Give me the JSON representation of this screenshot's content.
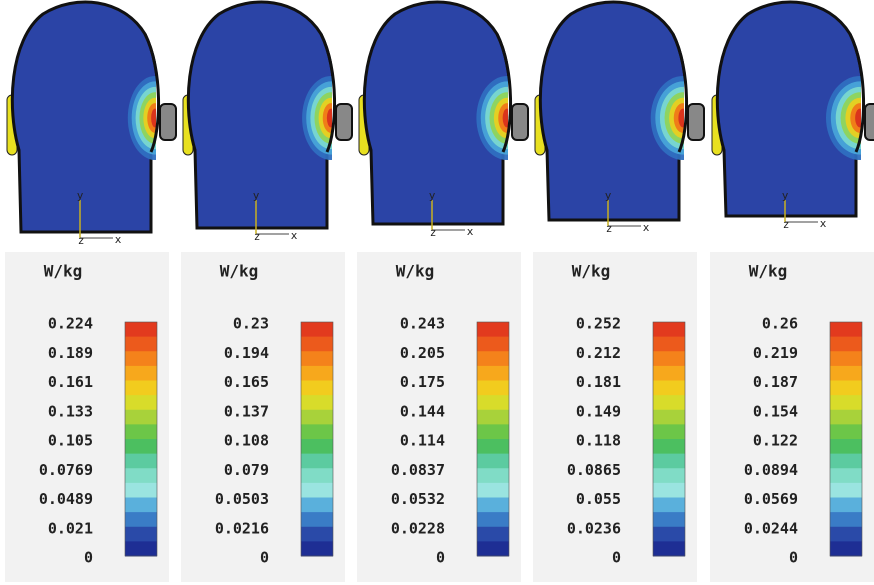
{
  "axis_labels": [
    "y",
    "z",
    "x"
  ],
  "panels": [
    {
      "unit": "W/kg",
      "ticks": [
        0.224,
        0.189,
        0.161,
        0.133,
        0.105,
        0.0769,
        0.0489,
        0.021,
        0
      ]
    },
    {
      "unit": "W/kg",
      "ticks": [
        0.23,
        0.194,
        0.165,
        0.137,
        0.108,
        0.079,
        0.0503,
        0.0216,
        0
      ]
    },
    {
      "unit": "W/kg",
      "ticks": [
        0.243,
        0.205,
        0.175,
        0.144,
        0.114,
        0.0837,
        0.0532,
        0.0228,
        0
      ]
    },
    {
      "unit": "W/kg",
      "ticks": [
        0.252,
        0.212,
        0.181,
        0.149,
        0.118,
        0.0865,
        0.055,
        0.0236,
        0
      ]
    },
    {
      "unit": "W/kg",
      "ticks": [
        0.26,
        0.219,
        0.187,
        0.154,
        0.122,
        0.0894,
        0.0569,
        0.0244,
        0
      ]
    }
  ]
}
